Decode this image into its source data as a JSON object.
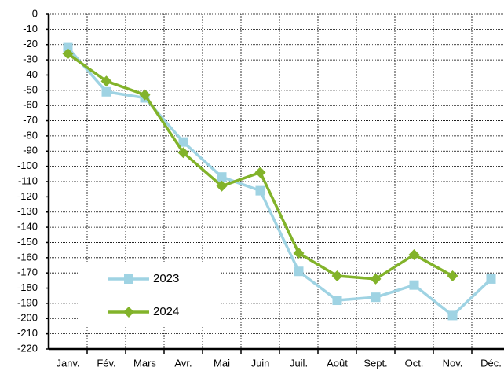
{
  "chart_data": {
    "type": "line",
    "categories": [
      "Janv.",
      "Fév.",
      "Mars",
      "Avr.",
      "Mai",
      "Juin",
      "Juil.",
      "Août",
      "Sept.",
      "Oct.",
      "Nov.",
      "Déc."
    ],
    "series": [
      {
        "name": "2023",
        "color": "#9fd3e3",
        "marker": "square",
        "values": [
          -22,
          -51,
          -55,
          -84,
          -107,
          -116,
          -169,
          -188,
          -186,
          -178,
          -198,
          -174
        ]
      },
      {
        "name": "2024",
        "color": "#82b32a",
        "marker": "diamond",
        "values": [
          -26,
          -44,
          -53,
          -91,
          -113,
          -104,
          -157,
          -172,
          -174,
          -158,
          -172,
          null
        ]
      }
    ],
    "ylim": [
      -220,
      0
    ],
    "yticks": [
      0,
      -10,
      -20,
      -30,
      -40,
      -50,
      -60,
      -70,
      -80,
      -90,
      -100,
      -110,
      -120,
      -130,
      -140,
      -150,
      -160,
      -170,
      -180,
      -190,
      -200,
      -210,
      -220
    ],
    "grid": true,
    "legend": "lower left"
  }
}
